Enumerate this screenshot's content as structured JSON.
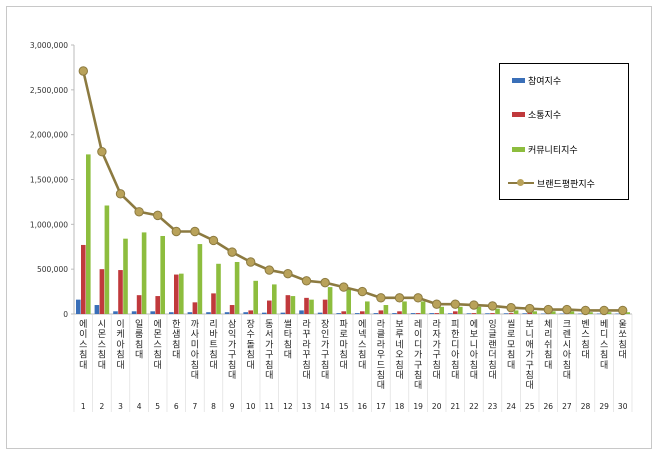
{
  "colors": {
    "participation": "#3a6fb8",
    "communication": "#c0393c",
    "community": "#8dbd3e",
    "brand": "#8c7a40",
    "brand_marker": "#b9a25a"
  },
  "chart_data": {
    "type": "bar",
    "title": "",
    "xlabel": "",
    "ylabel": "",
    "ylim": [
      0,
      3000000
    ],
    "yticks": [
      "0",
      "500,000",
      "1,000,000",
      "1,500,000",
      "2,000,000",
      "2,500,000",
      "3,000,000"
    ],
    "grid": false,
    "legend_position": "top-right",
    "categories": [
      "에이스침대",
      "시몬스침대",
      "이케아침대",
      "일룸침대",
      "에몬스침대",
      "한샘침대",
      "까사미아침대",
      "리바트침대",
      "삼익가구침대",
      "장수돌침대",
      "동서가구침대",
      "썰타침대",
      "라꾸라꾸침대",
      "장인가구침대",
      "파로마침대",
      "에넥스침대",
      "라클라우드침대",
      "보루네오침대",
      "레이디가구침대",
      "라자가구침대",
      "피한디아침대",
      "에보니아침대",
      "잉글랜더침대",
      "씰로모침대",
      "보니애가구침대",
      "체리쉬침대",
      "크렌시아침대",
      "벤스침대",
      "베디스침대",
      "울쏘침대"
    ],
    "ranks": [
      "1",
      "2",
      "3",
      "4",
      "5",
      "6",
      "7",
      "8",
      "9",
      "10",
      "11",
      "12",
      "13",
      "14",
      "15",
      "16",
      "17",
      "18",
      "19",
      "20",
      "21",
      "22",
      "23",
      "24",
      "25",
      "26",
      "27",
      "28",
      "29",
      "30"
    ],
    "series": [
      {
        "name": "참여지수",
        "type": "bar",
        "values": [
          160000,
          100000,
          30000,
          30000,
          30000,
          20000,
          20000,
          20000,
          20000,
          20000,
          15000,
          15000,
          40000,
          15000,
          10000,
          10000,
          10000,
          10000,
          10000,
          10000,
          8000,
          8000,
          8000,
          8000,
          8000,
          5000,
          5000,
          5000,
          5000,
          5000
        ]
      },
      {
        "name": "소통지수",
        "type": "bar",
        "values": [
          770000,
          500000,
          490000,
          210000,
          200000,
          440000,
          130000,
          230000,
          100000,
          40000,
          150000,
          210000,
          180000,
          160000,
          30000,
          30000,
          40000,
          30000,
          10000,
          10000,
          30000,
          10000,
          10000,
          10000,
          20000,
          10000,
          10000,
          10000,
          10000,
          10000
        ]
      },
      {
        "name": "커뮤니티지수",
        "type": "bar",
        "values": [
          1780000,
          1210000,
          840000,
          910000,
          870000,
          450000,
          780000,
          560000,
          580000,
          370000,
          330000,
          200000,
          160000,
          300000,
          280000,
          140000,
          100000,
          140000,
          140000,
          80000,
          80000,
          80000,
          60000,
          40000,
          30000,
          30000,
          30000,
          20000,
          20000,
          20000
        ]
      },
      {
        "name": "브랜드평판지수",
        "type": "line",
        "values": [
          2710000,
          1810000,
          1340000,
          1140000,
          1100000,
          920000,
          920000,
          820000,
          690000,
          580000,
          490000,
          450000,
          370000,
          350000,
          300000,
          250000,
          180000,
          180000,
          180000,
          110000,
          110000,
          100000,
          90000,
          70000,
          60000,
          50000,
          50000,
          40000,
          40000,
          40000
        ]
      }
    ]
  }
}
